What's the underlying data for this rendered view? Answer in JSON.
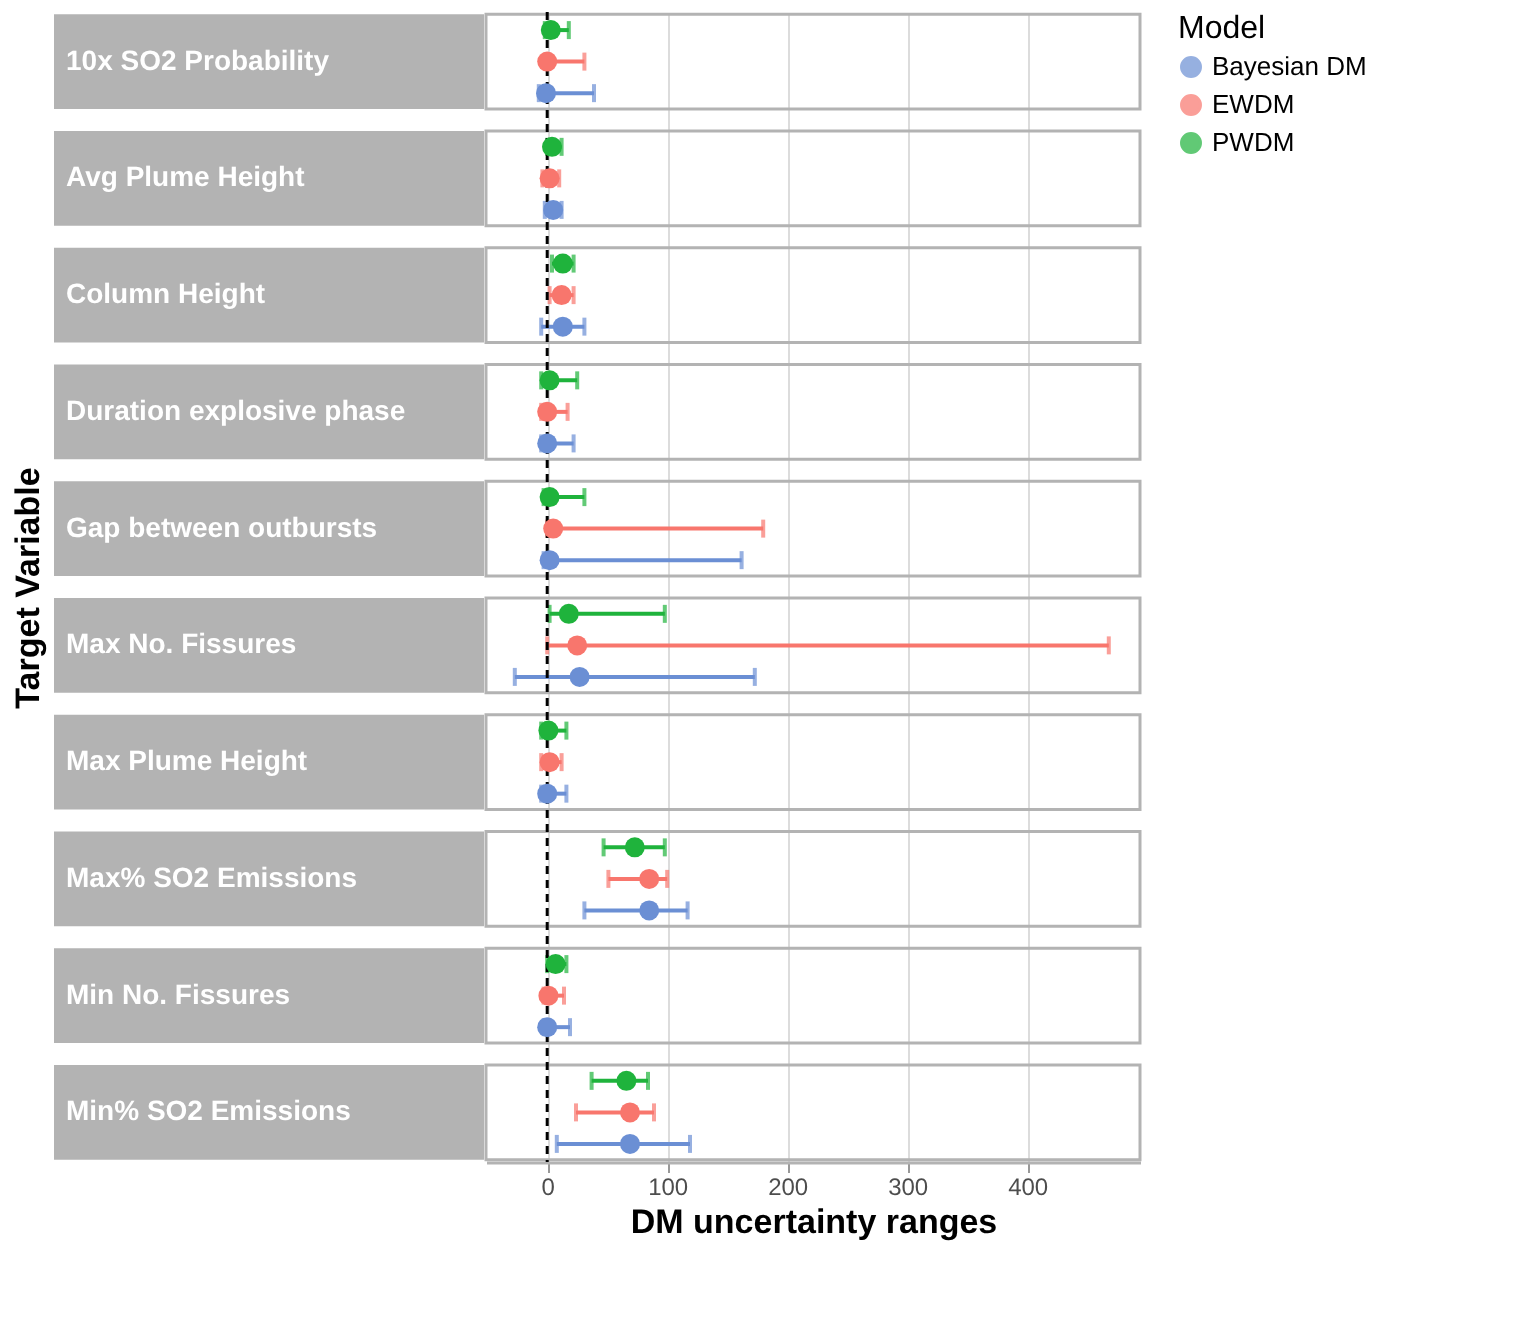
{
  "chart_data": {
    "type": "scatter",
    "orientation": "horizontal",
    "xlabel": "DM uncertainty ranges",
    "ylabel": "Target Variable",
    "legend_title": "Model",
    "legend": "right",
    "grid": "x",
    "categories": [
      "10x SO2 Probability",
      "Avg Plume Height",
      "Column Height",
      "Duration explosive phase",
      "Gap between outbursts",
      "Max No. Fissures",
      "Max Plume Height",
      "Max% SO2 Emissions",
      "Min No. Fissures",
      "Min% SO2 Emissions"
    ],
    "xlim": [
      -51,
      494
    ],
    "xticks": [
      0,
      100,
      200,
      300,
      400
    ],
    "ref_lines": [
      {
        "axis": "x",
        "value": 0,
        "color": "#000000",
        "line_style": "dashed"
      }
    ],
    "series": [
      {
        "name": "PWDM",
        "color": "#1fb33c",
        "values": [
          3,
          4,
          13,
          2,
          2,
          18,
          1,
          73,
          7,
          66
        ],
        "errors": [
          [
            -2,
            18
          ],
          [
            0,
            12
          ],
          [
            4,
            22
          ],
          [
            -5,
            25
          ],
          [
            -3,
            31
          ],
          [
            2,
            98
          ],
          [
            -5,
            16
          ],
          [
            47,
            98
          ],
          [
            0,
            16
          ],
          [
            37,
            84
          ]
        ]
      },
      {
        "name": "EWDM",
        "color": "#f8766d",
        "values": [
          0,
          2,
          12,
          0,
          5,
          25,
          2,
          85,
          1,
          69
        ],
        "errors": [
          [
            0,
            31
          ],
          [
            -4,
            10
          ],
          [
            2,
            22
          ],
          [
            -5,
            17
          ],
          [
            0,
            180
          ],
          [
            0,
            468
          ],
          [
            -5,
            12
          ],
          [
            51,
            100
          ],
          [
            -3,
            14
          ],
          [
            24,
            89
          ]
        ]
      },
      {
        "name": "Bayesian DM",
        "color": "#6b8fd4",
        "values": [
          -1,
          5,
          13,
          0,
          2,
          27,
          0,
          85,
          0,
          69
        ],
        "errors": [
          [
            -7,
            39
          ],
          [
            -2,
            12
          ],
          [
            -5,
            31
          ],
          [
            -5,
            22
          ],
          [
            -3,
            162
          ],
          [
            -27,
            173
          ],
          [
            -5,
            16
          ],
          [
            31,
            117
          ],
          [
            -3,
            19
          ],
          [
            8,
            119
          ]
        ]
      }
    ]
  }
}
